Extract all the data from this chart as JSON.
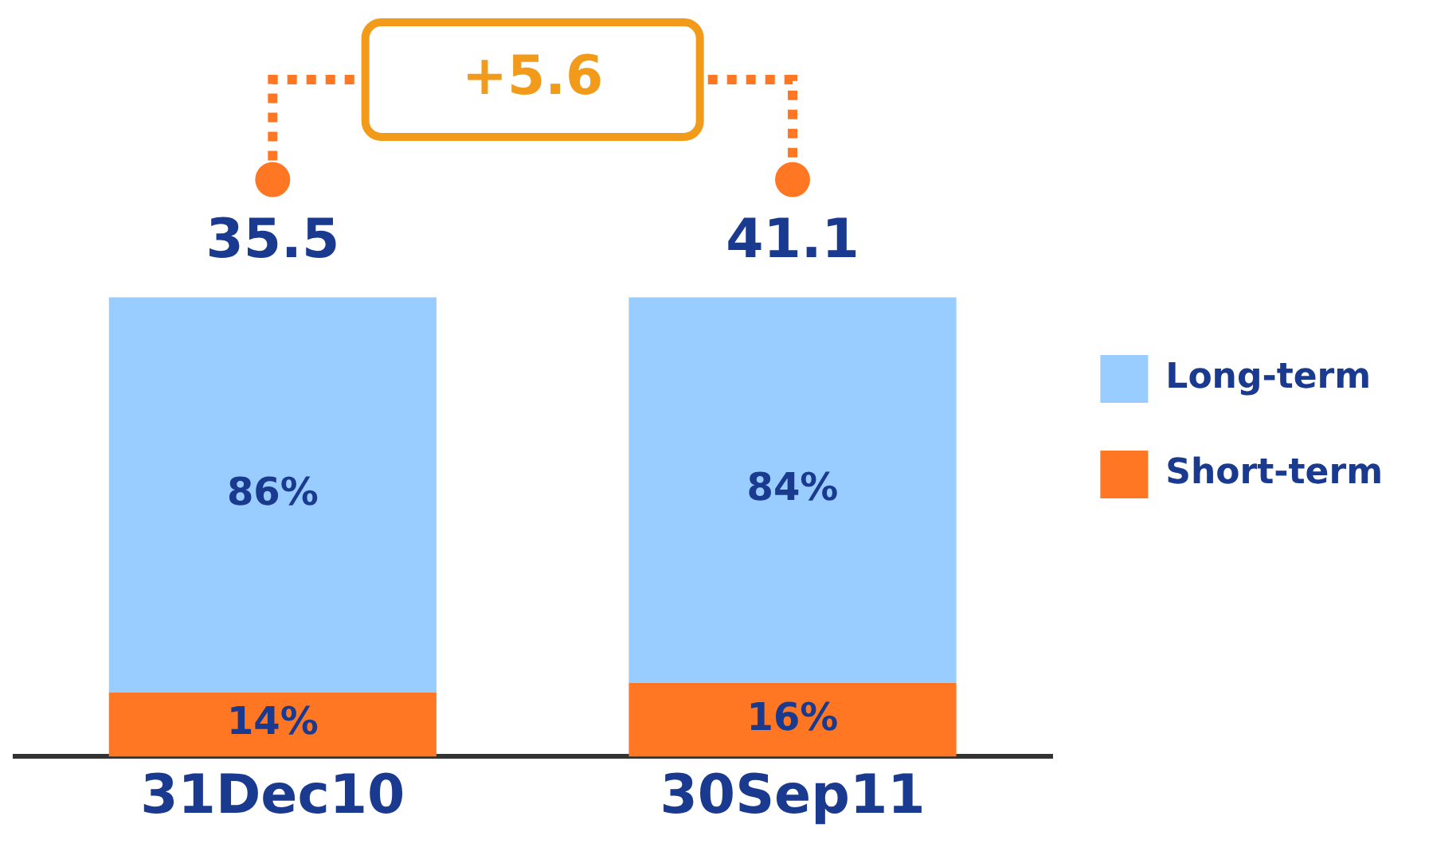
{
  "chart_data": {
    "type": "bar",
    "stacked": true,
    "categories": [
      "31Dec10",
      "30Sep11"
    ],
    "series": [
      {
        "name": "Short-term",
        "color": "#ff7722",
        "values": [
          14,
          16
        ],
        "value_labels": [
          "14%",
          "16%"
        ]
      },
      {
        "name": "Long-term",
        "color": "#99ccff",
        "values": [
          86,
          84
        ],
        "value_labels": [
          "86%",
          "84%"
        ]
      }
    ],
    "annotations": [
      "+5.6",
      "35.5",
      "41.1"
    ],
    "legend": "right",
    "grid": false
  }
}
